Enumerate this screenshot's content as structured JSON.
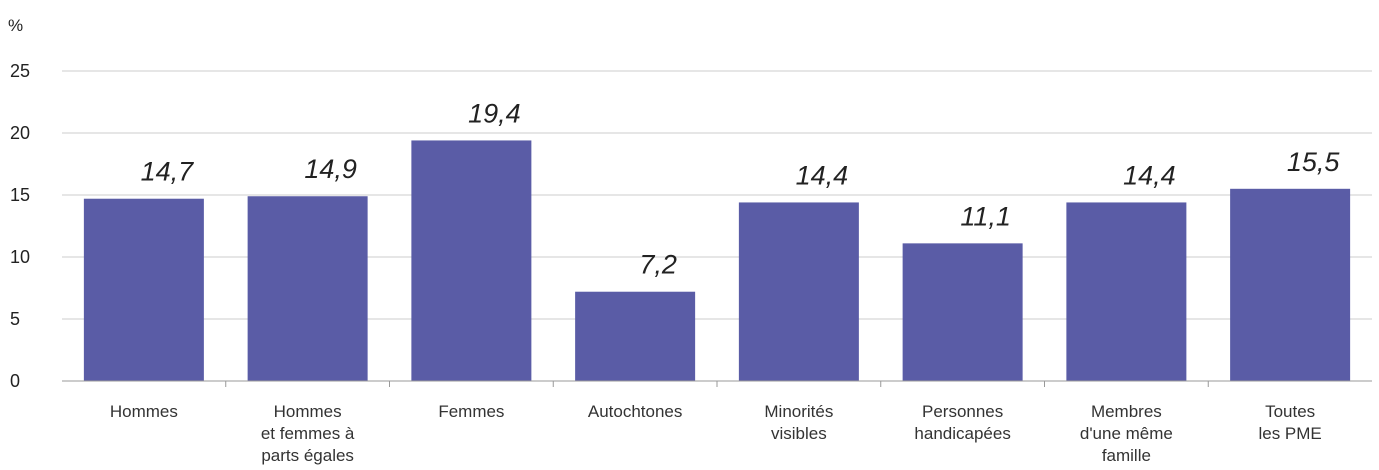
{
  "chart_data": {
    "type": "bar",
    "title": "",
    "xlabel": "",
    "ylabel": "%",
    "ylim": [
      0,
      25
    ],
    "yticks": [
      "0",
      "5",
      "10",
      "15",
      "20",
      "25"
    ],
    "grid": true,
    "categories": [
      [
        "Hommes"
      ],
      [
        "Hommes",
        "et femmes à",
        "parts égales"
      ],
      [
        "Femmes"
      ],
      [
        "Autochtones"
      ],
      [
        "Minorités",
        "visibles"
      ],
      [
        "Personnes",
        "handicapées"
      ],
      [
        "Membres",
        "d'une même",
        "famille"
      ],
      [
        "Toutes",
        "les PME"
      ]
    ],
    "values": [
      14.7,
      14.9,
      19.4,
      7.2,
      14.4,
      11.1,
      14.4,
      15.5
    ],
    "value_labels": [
      "14,7",
      "14,9",
      "19,4",
      "7,2",
      "14,4",
      "11,1",
      "14,4",
      "15,5"
    ],
    "bar_color": "#5a5ca6",
    "grid_color": "#cccccc"
  }
}
